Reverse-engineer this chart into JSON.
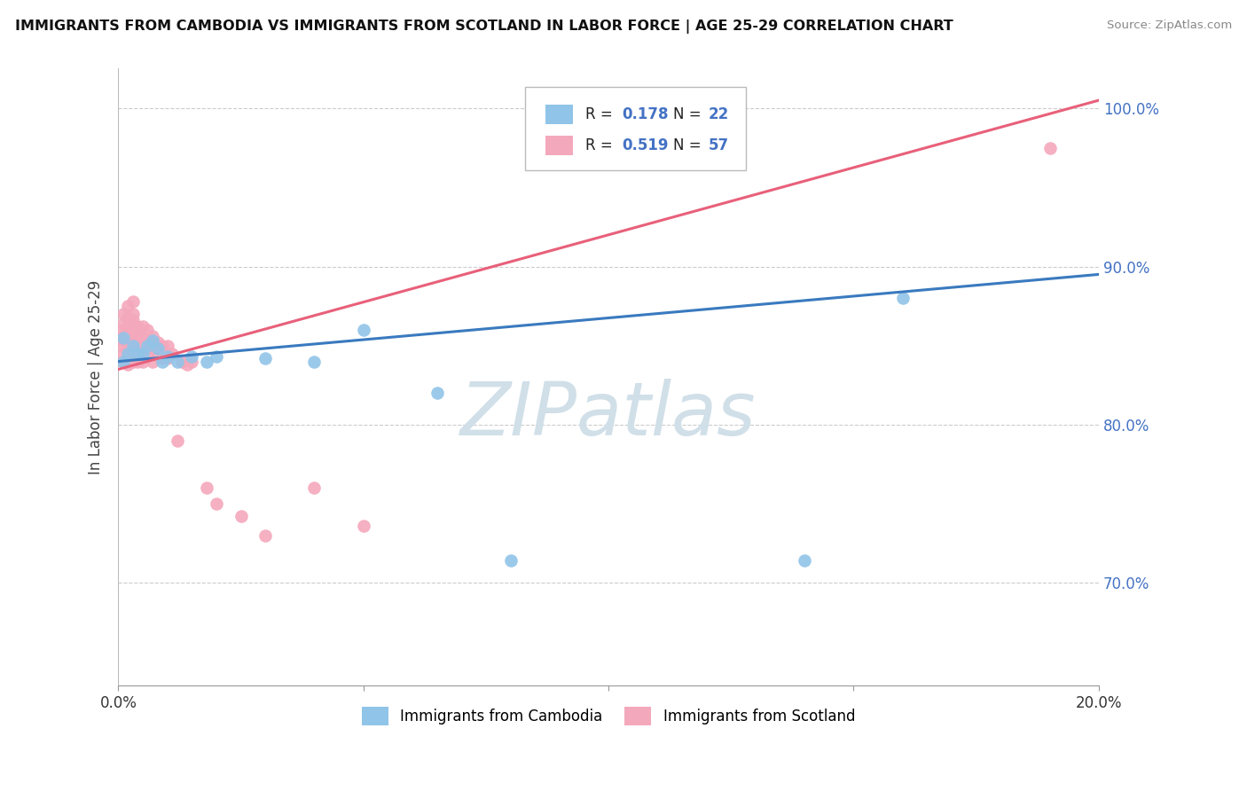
{
  "title": "IMMIGRANTS FROM CAMBODIA VS IMMIGRANTS FROM SCOTLAND IN LABOR FORCE | AGE 25-29 CORRELATION CHART",
  "source": "Source: ZipAtlas.com",
  "ylabel": "In Labor Force | Age 25-29",
  "R_cambodia": 0.178,
  "N_cambodia": 22,
  "R_scotland": 0.519,
  "N_scotland": 57,
  "cambodia_color": "#90c4e8",
  "scotland_color": "#f4a8bc",
  "cambodia_line_color": "#3a7abf",
  "scotland_line_color": "#e8607a",
  "cambodia_scatter_x": [
    0.001,
    0.001,
    0.002,
    0.003,
    0.004,
    0.005,
    0.006,
    0.007,
    0.008,
    0.009,
    0.01,
    0.012,
    0.015,
    0.018,
    0.02,
    0.03,
    0.04,
    0.05,
    0.065,
    0.08,
    0.14,
    0.16
  ],
  "cambodia_scatter_y": [
    0.84,
    0.855,
    0.845,
    0.85,
    0.845,
    0.845,
    0.85,
    0.853,
    0.848,
    0.84,
    0.843,
    0.84,
    0.843,
    0.84,
    0.843,
    0.842,
    0.84,
    0.86,
    0.82,
    0.714,
    0.714,
    0.88
  ],
  "scotland_scatter_x": [
    0.001,
    0.001,
    0.001,
    0.001,
    0.001,
    0.001,
    0.001,
    0.001,
    0.002,
    0.002,
    0.002,
    0.002,
    0.002,
    0.002,
    0.002,
    0.002,
    0.003,
    0.003,
    0.003,
    0.003,
    0.003,
    0.003,
    0.003,
    0.003,
    0.004,
    0.004,
    0.004,
    0.004,
    0.004,
    0.005,
    0.005,
    0.005,
    0.005,
    0.006,
    0.006,
    0.006,
    0.007,
    0.007,
    0.007,
    0.008,
    0.008,
    0.009,
    0.009,
    0.01,
    0.01,
    0.011,
    0.012,
    0.013,
    0.014,
    0.015,
    0.018,
    0.02,
    0.025,
    0.03,
    0.04,
    0.05,
    0.19
  ],
  "scotland_scatter_y": [
    0.84,
    0.845,
    0.85,
    0.853,
    0.856,
    0.86,
    0.864,
    0.87,
    0.838,
    0.842,
    0.846,
    0.852,
    0.856,
    0.862,
    0.868,
    0.875,
    0.84,
    0.845,
    0.85,
    0.855,
    0.86,
    0.866,
    0.87,
    0.878,
    0.84,
    0.845,
    0.85,
    0.856,
    0.862,
    0.84,
    0.846,
    0.855,
    0.862,
    0.845,
    0.852,
    0.86,
    0.84,
    0.848,
    0.856,
    0.843,
    0.852,
    0.842,
    0.85,
    0.842,
    0.85,
    0.845,
    0.79,
    0.84,
    0.838,
    0.84,
    0.76,
    0.75,
    0.742,
    0.73,
    0.76,
    0.736,
    0.975
  ],
  "xmin": 0.0,
  "xmax": 0.2,
  "ymin": 0.635,
  "ymax": 1.025,
  "yticks": [
    0.7,
    0.8,
    0.9,
    1.0
  ],
  "ytick_labels": [
    "70.0%",
    "80.0%",
    "90.0%",
    "100.0%"
  ],
  "xtick_positions": [
    0.0,
    0.05,
    0.1,
    0.15,
    0.2
  ],
  "grid_color": "#cccccc",
  "background_color": "#ffffff",
  "watermark_color": "#d0dfe8"
}
